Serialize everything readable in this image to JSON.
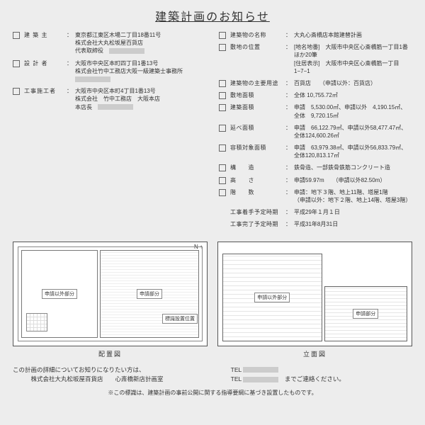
{
  "title": "建築計画のお知らせ",
  "left": [
    {
      "label": "建 築 主",
      "value": "東京都江東区木場二丁目18番11号\n株式会社大丸松坂屋百貨店\n代表取締役　[redact]"
    },
    {
      "label": "設 計 者",
      "value": "大阪市中央区本町四丁目1番13号\n株式会社竹中工務店大阪一級建築士事務所\n[redact]"
    },
    {
      "label": "工事施工者",
      "value": "大阪市中央区本町4丁目1番13号\n株式会社　竹中工務店　大阪本店\n本店長　[redact]"
    }
  ],
  "right": [
    {
      "label": "建築物の名称",
      "value": "大丸心斎橋店本館建替計画"
    },
    {
      "label": "敷地の位置",
      "value": "[地名地番]　大阪市中央区心斎橋筋一丁目1番ほか20筆\n[住居表示]　大阪市中央区心斎橋筋一丁目1−7−1"
    },
    {
      "label": "建築物の主要用途",
      "value": "百貨店　　（申請以外：百貨店）"
    },
    {
      "label": "敷地面積",
      "value": "全体 10,755.72㎡"
    },
    {
      "label": "建築面積",
      "value": "申請　5,530.00㎡、申請以外　4,190.15㎡、\n全体　9,720.15㎡"
    },
    {
      "label": "延べ面積",
      "value": "申請　66,122.79㎡、申請以外58,477.47㎡、\n全体124,600.26㎡"
    },
    {
      "label": "容積対象面積",
      "value": "申請　63,979.38㎡、申請以外56,833.79㎡、\n全体120,813.17㎡"
    },
    {
      "label": "構　　造",
      "value": "鉄骨造、一部鉄骨鉄筋コンクリート造"
    },
    {
      "label": "高　　さ",
      "value": "申請59.97m　　（申請以外82.50m）"
    },
    {
      "label": "階　　数",
      "value": "申請：地下３階、地上11階、塔屋1階\n（申請以外：地下２階、地上14階、塔屋3階）"
    },
    {
      "label": "工事着手予定時期",
      "value": "平成29年１月１日",
      "nocheck": true
    },
    {
      "label": "工事完了予定時期",
      "value": "平成31年8月31日",
      "nocheck": true
    }
  ],
  "diagram": {
    "plan_label": "配置図",
    "elev_label": "立面図",
    "plan_tag_a": "申請以外部分",
    "plan_tag_b": "申請部分",
    "marker_label": "標識設置位置",
    "elev_tag_a": "申請以外部分",
    "elev_tag_b": "申請部分",
    "compass": "N ↑"
  },
  "footer": {
    "line1": "この計画の詳細についてお知りになりたい方は、",
    "line2": "　　　株式会社大丸松坂屋百貨店　　心斎橋新店計画室",
    "tel_label": "TEL",
    "contact_suffix": "までご連絡ください。",
    "note": "※この標識は、建築計画の事前公開に関する指導要綱に基づき設置したものです。"
  }
}
